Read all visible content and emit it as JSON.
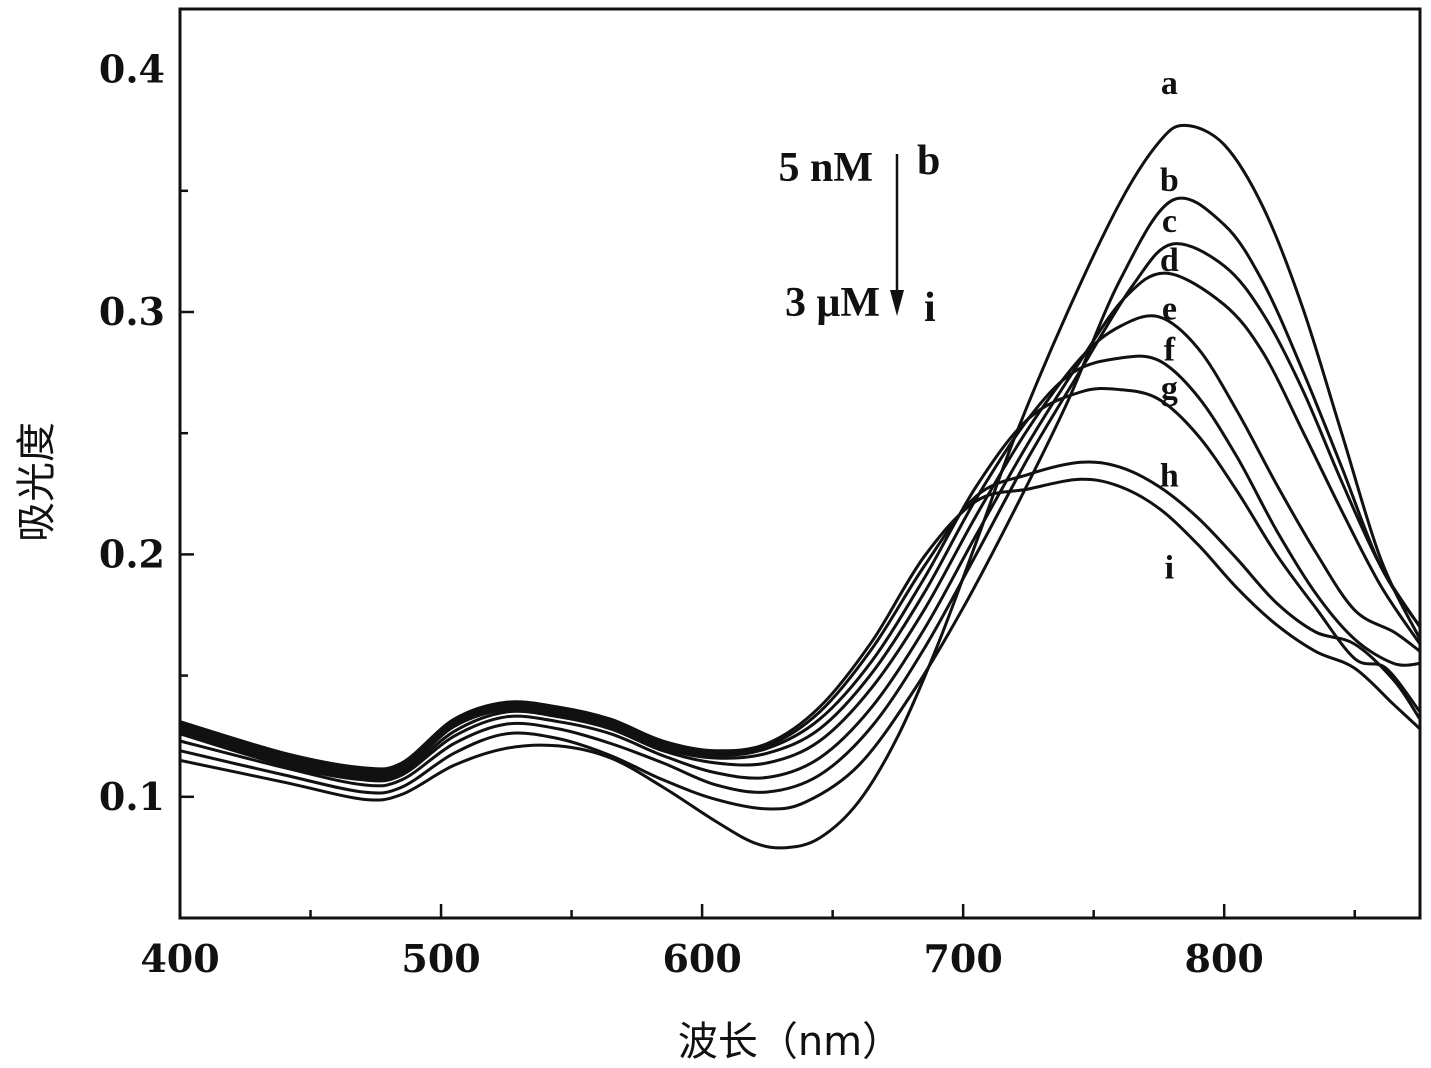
{
  "chart_data": {
    "type": "line",
    "xlabel": "波长（nm）",
    "ylabel": "吸光度",
    "xlim": [
      400,
      875
    ],
    "ylim": [
      0.05,
      0.425
    ],
    "x_ticks": [
      400,
      500,
      600,
      700,
      800
    ],
    "y_ticks": [
      0.1,
      0.2,
      0.3,
      0.4
    ],
    "annotation": {
      "top_text": "5 nM",
      "top_label": "b",
      "bottom_text": "3 μM",
      "bottom_label": "i"
    },
    "series": [
      {
        "name": "a",
        "points": [
          [
            400,
            0.115
          ],
          [
            440,
            0.106
          ],
          [
            470,
            0.099
          ],
          [
            485,
            0.101
          ],
          [
            505,
            0.113
          ],
          [
            525,
            0.12
          ],
          [
            545,
            0.121
          ],
          [
            565,
            0.116
          ],
          [
            585,
            0.104
          ],
          [
            605,
            0.09
          ],
          [
            620,
            0.081
          ],
          [
            632,
            0.079
          ],
          [
            645,
            0.083
          ],
          [
            660,
            0.098
          ],
          [
            675,
            0.125
          ],
          [
            690,
            0.162
          ],
          [
            705,
            0.205
          ],
          [
            720,
            0.249
          ],
          [
            740,
            0.3
          ],
          [
            760,
            0.345
          ],
          [
            775,
            0.37
          ],
          [
            785,
            0.377
          ],
          [
            800,
            0.369
          ],
          [
            815,
            0.343
          ],
          [
            830,
            0.302
          ],
          [
            845,
            0.25
          ],
          [
            860,
            0.198
          ],
          [
            875,
            0.165
          ]
        ]
      },
      {
        "name": "b",
        "points": [
          [
            400,
            0.119
          ],
          [
            440,
            0.109
          ],
          [
            470,
            0.102
          ],
          [
            485,
            0.104
          ],
          [
            505,
            0.118
          ],
          [
            525,
            0.126
          ],
          [
            545,
            0.124
          ],
          [
            565,
            0.117
          ],
          [
            585,
            0.107
          ],
          [
            605,
            0.099
          ],
          [
            625,
            0.095
          ],
          [
            640,
            0.098
          ],
          [
            660,
            0.113
          ],
          [
            680,
            0.142
          ],
          [
            700,
            0.178
          ],
          [
            720,
            0.219
          ],
          [
            740,
            0.263
          ],
          [
            760,
            0.313
          ],
          [
            780,
            0.346
          ],
          [
            800,
            0.336
          ],
          [
            815,
            0.312
          ],
          [
            830,
            0.276
          ],
          [
            845,
            0.236
          ],
          [
            860,
            0.195
          ],
          [
            875,
            0.17
          ]
        ]
      },
      {
        "name": "c",
        "points": [
          [
            400,
            0.123
          ],
          [
            440,
            0.112
          ],
          [
            470,
            0.105
          ],
          [
            485,
            0.107
          ],
          [
            505,
            0.122
          ],
          [
            525,
            0.13
          ],
          [
            545,
            0.128
          ],
          [
            565,
            0.122
          ],
          [
            585,
            0.114
          ],
          [
            605,
            0.105
          ],
          [
            625,
            0.102
          ],
          [
            645,
            0.109
          ],
          [
            665,
            0.129
          ],
          [
            685,
            0.161
          ],
          [
            705,
            0.2
          ],
          [
            725,
            0.24
          ],
          [
            745,
            0.276
          ],
          [
            765,
            0.311
          ],
          [
            780,
            0.328
          ],
          [
            800,
            0.319
          ],
          [
            815,
            0.299
          ],
          [
            830,
            0.268
          ],
          [
            845,
            0.23
          ],
          [
            860,
            0.195
          ],
          [
            875,
            0.17
          ]
        ]
      },
      {
        "name": "d",
        "points": [
          [
            400,
            0.126
          ],
          [
            440,
            0.113
          ],
          [
            470,
            0.107
          ],
          [
            485,
            0.109
          ],
          [
            505,
            0.125
          ],
          [
            525,
            0.133
          ],
          [
            545,
            0.131
          ],
          [
            565,
            0.126
          ],
          [
            585,
            0.117
          ],
          [
            605,
            0.11
          ],
          [
            625,
            0.108
          ],
          [
            645,
            0.116
          ],
          [
            665,
            0.137
          ],
          [
            685,
            0.169
          ],
          [
            705,
            0.208
          ],
          [
            725,
            0.246
          ],
          [
            745,
            0.28
          ],
          [
            762,
            0.306
          ],
          [
            778,
            0.316
          ],
          [
            800,
            0.303
          ],
          [
            815,
            0.283
          ],
          [
            830,
            0.251
          ],
          [
            845,
            0.218
          ],
          [
            860,
            0.187
          ],
          [
            875,
            0.163
          ]
        ]
      },
      {
        "name": "e",
        "points": [
          [
            400,
            0.127
          ],
          [
            440,
            0.114
          ],
          [
            470,
            0.108
          ],
          [
            485,
            0.11
          ],
          [
            505,
            0.127
          ],
          [
            525,
            0.135
          ],
          [
            545,
            0.133
          ],
          [
            565,
            0.128
          ],
          [
            585,
            0.119
          ],
          [
            605,
            0.114
          ],
          [
            625,
            0.114
          ],
          [
            645,
            0.123
          ],
          [
            665,
            0.145
          ],
          [
            685,
            0.177
          ],
          [
            705,
            0.216
          ],
          [
            725,
            0.252
          ],
          [
            745,
            0.281
          ],
          [
            760,
            0.294
          ],
          [
            775,
            0.298
          ],
          [
            790,
            0.285
          ],
          [
            805,
            0.259
          ],
          [
            820,
            0.229
          ],
          [
            835,
            0.201
          ],
          [
            850,
            0.177
          ],
          [
            865,
            0.168
          ],
          [
            875,
            0.16
          ]
        ]
      },
      {
        "name": "f",
        "points": [
          [
            400,
            0.128
          ],
          [
            440,
            0.115
          ],
          [
            470,
            0.109
          ],
          [
            485,
            0.111
          ],
          [
            505,
            0.129
          ],
          [
            525,
            0.136
          ],
          [
            545,
            0.134
          ],
          [
            565,
            0.129
          ],
          [
            585,
            0.12
          ],
          [
            605,
            0.116
          ],
          [
            625,
            0.118
          ],
          [
            645,
            0.128
          ],
          [
            665,
            0.151
          ],
          [
            685,
            0.184
          ],
          [
            705,
            0.223
          ],
          [
            725,
            0.256
          ],
          [
            742,
            0.275
          ],
          [
            760,
            0.281
          ],
          [
            775,
            0.28
          ],
          [
            790,
            0.265
          ],
          [
            805,
            0.24
          ],
          [
            820,
            0.21
          ],
          [
            835,
            0.184
          ],
          [
            850,
            0.165
          ],
          [
            865,
            0.155
          ],
          [
            875,
            0.155
          ]
        ]
      },
      {
        "name": "g",
        "points": [
          [
            400,
            0.129
          ],
          [
            440,
            0.116
          ],
          [
            470,
            0.11
          ],
          [
            485,
            0.112
          ],
          [
            505,
            0.13
          ],
          [
            525,
            0.137
          ],
          [
            545,
            0.135
          ],
          [
            565,
            0.13
          ],
          [
            585,
            0.121
          ],
          [
            605,
            0.117
          ],
          [
            625,
            0.12
          ],
          [
            645,
            0.132
          ],
          [
            665,
            0.156
          ],
          [
            685,
            0.19
          ],
          [
            705,
            0.228
          ],
          [
            725,
            0.256
          ],
          [
            745,
            0.267
          ],
          [
            760,
            0.268
          ],
          [
            775,
            0.264
          ],
          [
            790,
            0.249
          ],
          [
            805,
            0.226
          ],
          [
            820,
            0.2
          ],
          [
            835,
            0.178
          ],
          [
            850,
            0.157
          ],
          [
            862,
            0.153
          ],
          [
            875,
            0.135
          ]
        ]
      },
      {
        "name": "h",
        "points": [
          [
            400,
            0.13
          ],
          [
            440,
            0.117
          ],
          [
            470,
            0.111
          ],
          [
            485,
            0.113
          ],
          [
            505,
            0.131
          ],
          [
            525,
            0.138
          ],
          [
            545,
            0.136
          ],
          [
            565,
            0.131
          ],
          [
            585,
            0.122
          ],
          [
            605,
            0.118
          ],
          [
            625,
            0.121
          ],
          [
            645,
            0.135
          ],
          [
            665,
            0.161
          ],
          [
            685,
            0.195
          ],
          [
            705,
            0.224
          ],
          [
            725,
            0.233
          ],
          [
            745,
            0.238
          ],
          [
            760,
            0.236
          ],
          [
            775,
            0.228
          ],
          [
            790,
            0.215
          ],
          [
            805,
            0.198
          ],
          [
            820,
            0.18
          ],
          [
            835,
            0.168
          ],
          [
            850,
            0.163
          ],
          [
            865,
            0.148
          ],
          [
            875,
            0.132
          ]
        ]
      },
      {
        "name": "i",
        "points": [
          [
            400,
            0.131
          ],
          [
            440,
            0.118
          ],
          [
            470,
            0.112
          ],
          [
            485,
            0.114
          ],
          [
            505,
            0.132
          ],
          [
            525,
            0.139
          ],
          [
            545,
            0.137
          ],
          [
            565,
            0.132
          ],
          [
            585,
            0.123
          ],
          [
            605,
            0.119
          ],
          [
            625,
            0.122
          ],
          [
            645,
            0.137
          ],
          [
            665,
            0.164
          ],
          [
            685,
            0.199
          ],
          [
            705,
            0.222
          ],
          [
            725,
            0.227
          ],
          [
            745,
            0.231
          ],
          [
            760,
            0.228
          ],
          [
            775,
            0.219
          ],
          [
            790,
            0.204
          ],
          [
            805,
            0.186
          ],
          [
            820,
            0.171
          ],
          [
            835,
            0.16
          ],
          [
            850,
            0.153
          ],
          [
            865,
            0.138
          ],
          [
            875,
            0.128
          ]
        ]
      }
    ],
    "curve_labels": [
      {
        "label": "a",
        "x": 779,
        "y": 0.39
      },
      {
        "label": "b",
        "x": 779,
        "y": 0.35
      },
      {
        "label": "c",
        "x": 779,
        "y": 0.333
      },
      {
        "label": "d",
        "x": 779,
        "y": 0.317
      },
      {
        "label": "e",
        "x": 779,
        "y": 0.297
      },
      {
        "label": "f",
        "x": 779,
        "y": 0.28
      },
      {
        "label": "g",
        "x": 779,
        "y": 0.264
      },
      {
        "label": "h",
        "x": 779,
        "y": 0.228
      },
      {
        "label": "i",
        "x": 779,
        "y": 0.19
      }
    ]
  }
}
